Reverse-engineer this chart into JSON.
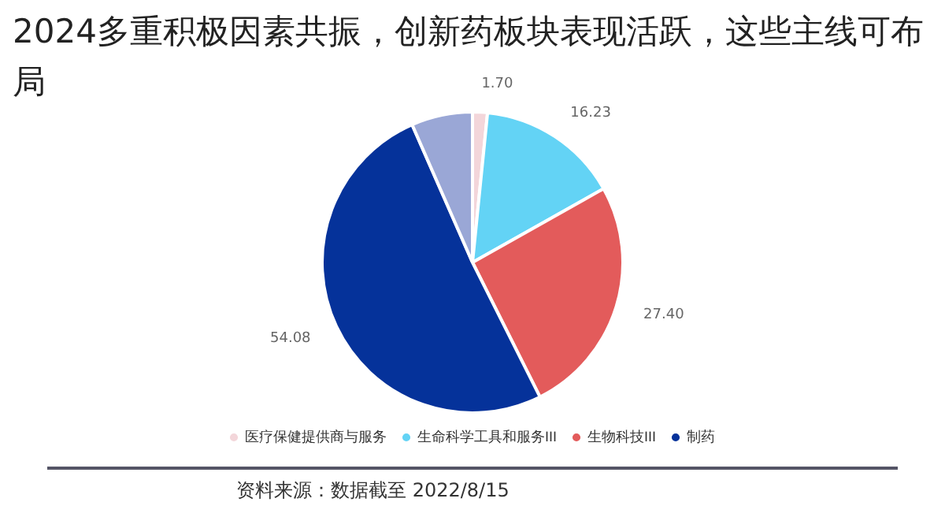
{
  "chart_data": {
    "type": "pie",
    "title": "2024多重积极因素共振，创新药板块表现活跃，这些主线可布局",
    "categories": [
      "医疗保健提供商与服务",
      "生命科学工具和服务III",
      "生物科技III",
      "制药",
      null
    ],
    "values": [
      1.7,
      16.23,
      27.4,
      54.08,
      7
    ],
    "value_labels": [
      "1.70",
      "16.23",
      "27.40",
      "54.08",
      null
    ],
    "colors": [
      "#f3d6da",
      "#63d3f5",
      "#e35b5b",
      "#05329a",
      "#9aa7d6"
    ],
    "legend": "bottom",
    "annotations": [
      "资料来源：数据截至 2022/8/15"
    ]
  }
}
